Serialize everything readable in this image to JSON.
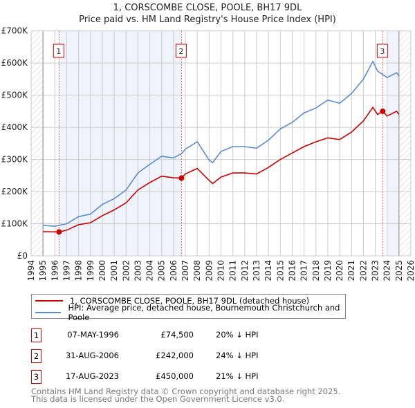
{
  "title_line1": "1, CORSCOMBE CLOSE, POOLE, BH17 9DL",
  "title_line2": "Price paid vs. HM Land Registry's House Price Index (HPI)",
  "chart_data": {
    "type": "line",
    "xlim": [
      1994,
      2026
    ],
    "ylim": [
      0,
      700000
    ],
    "yticks": [
      0,
      100000,
      200000,
      300000,
      400000,
      500000,
      600000,
      700000
    ],
    "ytick_labels": [
      "£0",
      "£100K",
      "£200K",
      "£300K",
      "£400K",
      "£500K",
      "£600K",
      "£700K"
    ],
    "xticks": [
      1994,
      1995,
      1996,
      1997,
      1998,
      1999,
      2000,
      2001,
      2002,
      2003,
      2004,
      2005,
      2006,
      2007,
      2008,
      2009,
      2010,
      2011,
      2012,
      2013,
      2014,
      2015,
      2016,
      2017,
      2018,
      2019,
      2020,
      2021,
      2022,
      2023,
      2024,
      2025,
      2026
    ],
    "xtick_labels": [
      "1994",
      "1995",
      "1996",
      "1997",
      "1998",
      "1999",
      "2000",
      "2001",
      "2002",
      "2003",
      "2004",
      "2005",
      "2006",
      "2007",
      "2008",
      "2009",
      "2010",
      "2011",
      "2012",
      "2013",
      "2014",
      "2015",
      "2016",
      "2017",
      "2018",
      "2019",
      "2020",
      "2021",
      "2022",
      "2023",
      "2024",
      "2025",
      "2026"
    ],
    "grid": true,
    "legend_placement": "below",
    "series": [
      {
        "name": "1, CORSCOMBE CLOSE, POOLE, BH17 9DL (detached house)",
        "color": "#cc0000",
        "x": [
          1995,
          1996.35,
          1997,
          1998,
          1999,
          2000,
          2001,
          2002,
          2003,
          2004,
          2005,
          2006,
          2006.67,
          2007,
          2008,
          2009,
          2009.3,
          2010,
          2011,
          2012,
          2013,
          2014,
          2015,
          2016,
          2017,
          2018,
          2019,
          2020,
          2021,
          2022,
          2022.8,
          2023.2,
          2023.63,
          2024,
          2024.8,
          2025
        ],
        "y": [
          75000,
          74500,
          80000,
          97000,
          103000,
          125000,
          143000,
          165000,
          205000,
          228000,
          248000,
          243000,
          242000,
          255000,
          272000,
          235000,
          225000,
          245000,
          258000,
          258000,
          255000,
          275000,
          300000,
          320000,
          340000,
          355000,
          367000,
          362000,
          385000,
          420000,
          462000,
          440000,
          450000,
          435000,
          450000,
          440000
        ]
      },
      {
        "name": "HPI: Average price, detached house, Bournemouth Christchurch and Poole",
        "color": "#5b8bd0",
        "x": [
          1995,
          1996,
          1997,
          1998,
          1999,
          2000,
          2001,
          2002,
          2003,
          2004,
          2005,
          2006,
          2006.67,
          2007,
          2008,
          2009,
          2009.3,
          2010,
          2011,
          2012,
          2013,
          2014,
          2015,
          2016,
          2017,
          2018,
          2019,
          2020,
          2021,
          2022,
          2022.8,
          2023.2,
          2024,
          2024.8,
          2025
        ],
        "y": [
          95000,
          92000,
          100000,
          122000,
          130000,
          160000,
          178000,
          205000,
          258000,
          285000,
          310000,
          305000,
          318000,
          332000,
          355000,
          298000,
          290000,
          325000,
          340000,
          340000,
          335000,
          360000,
          395000,
          415000,
          445000,
          460000,
          485000,
          475000,
          505000,
          550000,
          605000,
          575000,
          555000,
          570000,
          560000
        ]
      }
    ],
    "sales": [
      {
        "label": "1",
        "x": 1996.35,
        "y": 74500,
        "date": "07-MAY-1996",
        "price": "£74,500",
        "hpi": "20% ↓ HPI"
      },
      {
        "label": "2",
        "x": 2006.67,
        "y": 242000,
        "date": "31-AUG-2006",
        "price": "£242,000",
        "hpi": "24% ↓ HPI"
      },
      {
        "label": "3",
        "x": 2023.63,
        "y": 450000,
        "date": "17-AUG-2023",
        "price": "£450,000",
        "hpi": "21% ↓ HPI"
      }
    ],
    "shaded_ranges": [
      [
        1996.35,
        2006.67
      ],
      [
        2024.05,
        2025
      ]
    ],
    "hatched_ranges": [
      [
        1994,
        1995
      ],
      [
        2025,
        2026
      ]
    ]
  },
  "legend": {
    "red_label": "1, CORSCOMBE CLOSE, POOLE, BH17 9DL (detached house)",
    "blue_label": "HPI: Average price, detached house, Bournemouth Christchurch and Poole"
  },
  "footer": {
    "line1": "Contains HM Land Registry data © Crown copyright and database right 2025.",
    "line2": "This data is licensed under the Open Government Licence v3.0."
  },
  "colors": {
    "red": "#cc0000",
    "blue": "#5b8bd0",
    "shade": "#eef3fc"
  }
}
